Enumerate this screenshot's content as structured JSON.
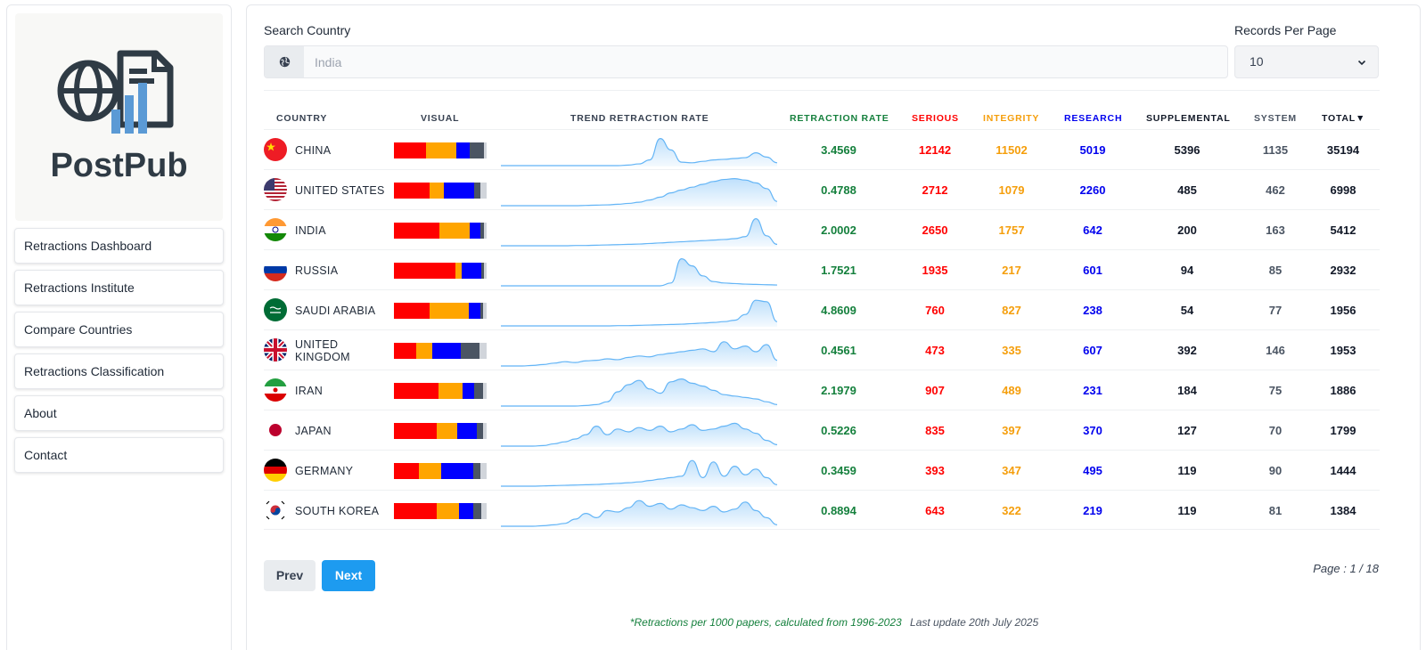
{
  "brand": {
    "name": "PostPub"
  },
  "nav": [
    {
      "label": "Retractions Dashboard"
    },
    {
      "label": "Retractions Institute"
    },
    {
      "label": "Compare Countries"
    },
    {
      "label": "Retractions Classification"
    },
    {
      "label": "About"
    },
    {
      "label": "Contact"
    }
  ],
  "search": {
    "label": "Search Country",
    "placeholder": "India",
    "icon": "globe-icon"
  },
  "records_per_page": {
    "label": "Records Per Page",
    "value": "10",
    "icon": "chevron-down-icon"
  },
  "table": {
    "headers": {
      "country": "COUNTRY",
      "visual": "VISUAL",
      "trend": "TREND RETRACTION RATE",
      "rate": "RETRACTION RATE",
      "serious": "SERIOUS",
      "integrity": "INTEGRITY",
      "research": "RESEARCH",
      "supplemental": "SUPPLEMENTAL",
      "system": "SYSTEM",
      "total": "TOTAL▼"
    },
    "colors": {
      "rate": "#15803d",
      "serious": "#ff0000",
      "integrity": "#ffa500",
      "research": "#0000ff",
      "supplemental": "#111827",
      "system": "#4b5563",
      "total": "#111827",
      "trend_stroke": "#64b5f6",
      "trend_fill": "#bbdefb"
    },
    "rows": [
      {
        "country": "CHINA",
        "flag": "china",
        "rate": "3.4569",
        "serious": "12142",
        "integrity": "11502",
        "research": "5019",
        "supplemental": "5396",
        "system": "1135",
        "total": "35194",
        "trend": [
          0,
          0,
          0,
          0,
          0,
          0,
          0,
          0,
          0,
          0,
          0,
          0,
          0.02,
          0.06,
          0.2,
          0.95,
          0.55,
          0.12,
          0.1,
          0.15,
          0.2,
          0.22,
          0.25,
          0.28,
          0.45,
          0.3,
          0.1
        ]
      },
      {
        "country": "UNITED STATES",
        "flag": "us",
        "rate": "0.4788",
        "serious": "2712",
        "integrity": "1079",
        "research": "2260",
        "supplemental": "485",
        "system": "462",
        "total": "6998",
        "trend": [
          0,
          0,
          0,
          0,
          0,
          0,
          0,
          0,
          0.01,
          0.02,
          0.03,
          0.05,
          0.08,
          0.12,
          0.2,
          0.3,
          0.45,
          0.55,
          0.65,
          0.75,
          0.85,
          0.92,
          0.95,
          0.9,
          0.8,
          0.6,
          0.15
        ]
      },
      {
        "country": "INDIA",
        "flag": "india",
        "rate": "2.0002",
        "serious": "2650",
        "integrity": "1757",
        "research": "642",
        "supplemental": "200",
        "system": "163",
        "total": "5412",
        "trend": [
          0,
          0,
          0,
          0,
          0,
          0,
          0,
          0.01,
          0.01,
          0.02,
          0.03,
          0.04,
          0.05,
          0.06,
          0.08,
          0.1,
          0.12,
          0.14,
          0.16,
          0.18,
          0.2,
          0.22,
          0.25,
          0.32,
          0.95,
          0.35,
          0.05
        ]
      },
      {
        "country": "RUSSIA",
        "flag": "russia",
        "rate": "1.7521",
        "serious": "1935",
        "integrity": "217",
        "research": "601",
        "supplemental": "94",
        "system": "85",
        "total": "2932",
        "trend": [
          0,
          0,
          0,
          0,
          0,
          0,
          0,
          0,
          0,
          0,
          0,
          0,
          0,
          0,
          0,
          0,
          0.1,
          0.95,
          0.7,
          0.35,
          0.15,
          0.1,
          0.08,
          0.06,
          0.05,
          0.04,
          0.03
        ]
      },
      {
        "country": "SAUDI ARABIA",
        "flag": "saudi",
        "rate": "4.8609",
        "serious": "760",
        "integrity": "827",
        "research": "238",
        "supplemental": "54",
        "system": "77",
        "total": "1956",
        "trend": [
          0,
          0,
          0,
          0,
          0,
          0,
          0,
          0,
          0,
          0,
          0,
          0.01,
          0.01,
          0.02,
          0.03,
          0.04,
          0.05,
          0.06,
          0.08,
          0.1,
          0.12,
          0.15,
          0.2,
          0.4,
          0.9,
          0.85,
          0.15
        ]
      },
      {
        "country": "UNITED KINGDOM",
        "flag": "uk",
        "rate": "0.4561",
        "serious": "473",
        "integrity": "335",
        "research": "607",
        "supplemental": "392",
        "system": "146",
        "total": "1953",
        "trend": [
          0,
          0,
          0,
          0.02,
          0.05,
          0.1,
          0.15,
          0.12,
          0.18,
          0.2,
          0.25,
          0.22,
          0.3,
          0.35,
          0.32,
          0.4,
          0.45,
          0.5,
          0.55,
          0.6,
          0.5,
          0.85,
          0.6,
          0.7,
          0.5,
          0.75,
          0.2
        ]
      },
      {
        "country": "IRAN",
        "flag": "iran",
        "rate": "2.1979",
        "serious": "907",
        "integrity": "489",
        "research": "231",
        "supplemental": "184",
        "system": "75",
        "total": "1886",
        "trend": [
          0,
          0,
          0,
          0,
          0,
          0,
          0,
          0,
          0.02,
          0.05,
          0.15,
          0.5,
          0.75,
          0.9,
          0.6,
          0.45,
          0.85,
          0.95,
          0.8,
          0.7,
          0.55,
          0.4,
          0.35,
          0.3,
          0.25,
          0.15,
          0.05
        ]
      },
      {
        "country": "JAPAN",
        "flag": "japan",
        "rate": "0.5226",
        "serious": "835",
        "integrity": "397",
        "research": "370",
        "supplemental": "127",
        "system": "70",
        "total": "1799",
        "trend": [
          0,
          0,
          0,
          0,
          0.02,
          0.08,
          0.15,
          0.25,
          0.4,
          0.7,
          0.4,
          0.6,
          0.5,
          0.65,
          0.55,
          0.7,
          0.5,
          0.6,
          0.75,
          0.55,
          0.6,
          0.7,
          0.8,
          0.6,
          0.45,
          0.2,
          0.05
        ]
      },
      {
        "country": "GERMANY",
        "flag": "germany",
        "rate": "0.3459",
        "serious": "393",
        "integrity": "347",
        "research": "495",
        "supplemental": "119",
        "system": "90",
        "total": "1444",
        "trend": [
          0,
          0,
          0,
          0,
          0.01,
          0.02,
          0.03,
          0.04,
          0.05,
          0.06,
          0.08,
          0.1,
          0.12,
          0.15,
          0.2,
          0.25,
          0.3,
          0.35,
          0.9,
          0.3,
          0.85,
          0.35,
          0.7,
          0.4,
          0.6,
          0.3,
          0.05
        ]
      },
      {
        "country": "SOUTH KOREA",
        "flag": "korea",
        "rate": "0.8894",
        "serious": "643",
        "integrity": "322",
        "research": "219",
        "supplemental": "119",
        "system": "81",
        "total": "1384",
        "trend": [
          0,
          0,
          0,
          0,
          0.02,
          0.05,
          0.1,
          0.25,
          0.45,
          0.3,
          0.55,
          0.5,
          0.65,
          0.9,
          0.7,
          0.8,
          0.6,
          0.75,
          0.65,
          0.55,
          0.7,
          0.5,
          0.6,
          0.85,
          0.55,
          0.3,
          0.05
        ]
      }
    ]
  },
  "pagination": {
    "prev_label": "Prev",
    "next_label": "Next",
    "page_info": "Page : 1 / 18"
  },
  "footnote": {
    "note": "*Retractions per 1000 papers, calculated from 1996-2023",
    "update": "Last update 20th July 2025"
  }
}
